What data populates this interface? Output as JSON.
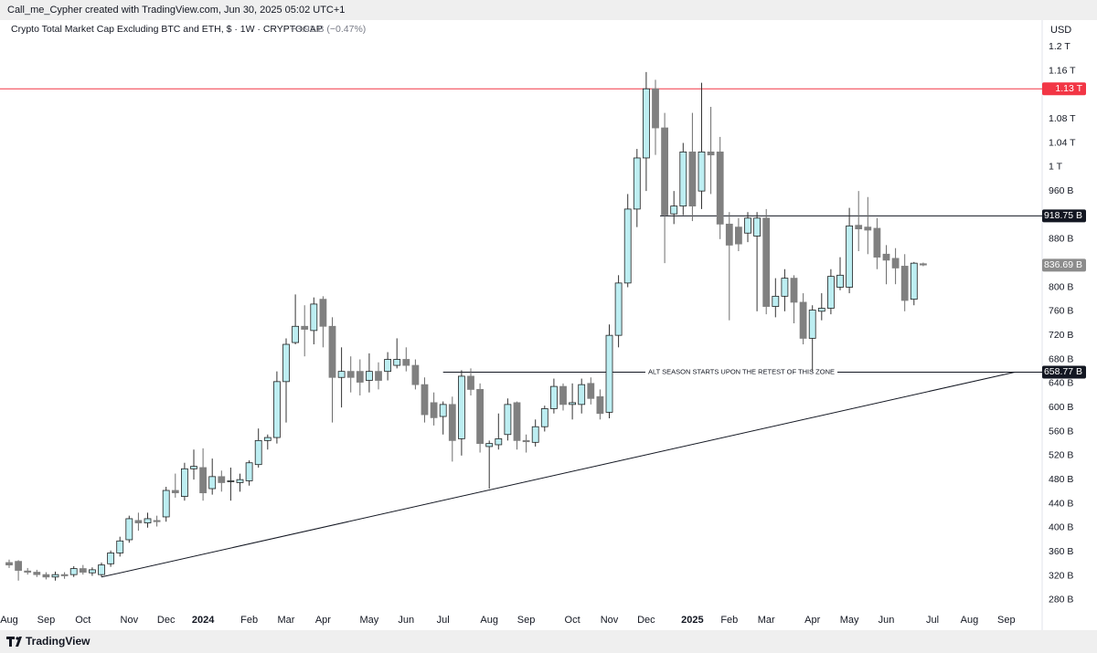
{
  "header": {
    "attribution": "Call_me_Cypher created with TradingView.com, Jun 30, 2025 05:02 UTC+1",
    "brand": "TradingView"
  },
  "chart_data": {
    "type": "candlestick",
    "title": "Crypto Total Market Cap Excluding BTC and ETH, $ · 1W · CRYPTOCAP",
    "change": "−3.92 B (−0.47%)",
    "currency": "USD",
    "up_color": "#bdeef2",
    "down_color": "#808080",
    "categories": [
      "Aug",
      null,
      null,
      null,
      "Sep",
      null,
      null,
      null,
      "Oct",
      null,
      null,
      null,
      null,
      "Nov",
      null,
      null,
      null,
      "Dec",
      null,
      null,
      null,
      "2024",
      null,
      null,
      null,
      null,
      "Feb",
      null,
      null,
      null,
      "Mar",
      null,
      null,
      null,
      "Apr",
      null,
      null,
      null,
      null,
      "May",
      null,
      null,
      null,
      "Jun",
      null,
      null,
      null,
      "Jul",
      null,
      null,
      null,
      null,
      "Aug",
      null,
      null,
      null,
      "Sep",
      null,
      null,
      null,
      null,
      "Oct",
      null,
      null,
      null,
      "Nov",
      null,
      null,
      null,
      "Dec",
      null,
      null,
      null,
      null,
      "2025",
      null,
      null,
      null,
      "Feb",
      null,
      null,
      null,
      "Mar",
      null,
      null,
      null,
      null,
      "Apr",
      null,
      null,
      null,
      "May",
      null,
      null,
      null,
      "Jun",
      null,
      null,
      null,
      null,
      "Jul",
      null,
      null,
      null,
      "Aug",
      null,
      null,
      null,
      "Sep"
    ],
    "open": [
      342,
      344,
      328,
      326,
      322,
      318,
      322,
      322,
      332,
      325,
      322,
      340,
      358,
      380,
      412,
      408,
      412,
      418,
      462,
      452,
      498,
      500,
      465,
      485,
      478,
      475,
      478,
      505,
      545,
      550,
      643,
      708,
      735,
      728,
      780,
      735,
      650,
      660,
      660,
      645,
      660,
      660,
      670,
      680,
      670,
      638,
      608,
      585,
      605,
      548,
      652,
      630,
      535,
      538,
      555,
      608,
      545,
      542,
      568,
      598,
      635,
      605,
      605,
      640,
      618,
      592,
      720,
      807,
      930,
      1015,
      1130,
      1065,
      922,
      935,
      1025,
      960,
      1025,
      1025,
      905,
      900,
      890,
      885,
      915,
      768,
      785,
      815,
      775,
      715,
      760,
      765,
      800,
      800,
      903,
      900,
      898,
      855,
      848,
      835,
      780,
      839,
      null,
      null,
      null,
      null,
      null,
      null,
      null,
      null,
      null
    ],
    "high": [
      347,
      346,
      333,
      330,
      326,
      327,
      326,
      336,
      338,
      334,
      342,
      362,
      385,
      420,
      425,
      425,
      420,
      468,
      490,
      508,
      530,
      532,
      515,
      495,
      500,
      490,
      512,
      565,
      555,
      660,
      715,
      788,
      770,
      783,
      785,
      750,
      700,
      685,
      680,
      690,
      675,
      692,
      715,
      700,
      680,
      650,
      625,
      610,
      618,
      662,
      665,
      640,
      545,
      590,
      615,
      610,
      555,
      580,
      603,
      648,
      640,
      640,
      648,
      650,
      630,
      738,
      820,
      955,
      1030,
      1158,
      1145,
      1090,
      960,
      1040,
      1090,
      1140,
      1100,
      1050,
      925,
      915,
      925,
      925,
      930,
      815,
      830,
      820,
      790,
      770,
      790,
      830,
      850,
      932,
      960,
      950,
      915,
      870,
      865,
      855,
      842,
      841,
      null,
      null,
      null,
      null,
      null,
      null,
      null,
      null,
      null
    ],
    "low": [
      333,
      312,
      322,
      318,
      314,
      312,
      315,
      318,
      322,
      320,
      318,
      335,
      352,
      375,
      395,
      400,
      402,
      410,
      450,
      445,
      480,
      445,
      455,
      460,
      445,
      460,
      470,
      500,
      530,
      540,
      575,
      705,
      685,
      705,
      700,
      575,
      600,
      625,
      620,
      625,
      630,
      645,
      665,
      660,
      630,
      575,
      570,
      555,
      510,
      520,
      620,
      525,
      465,
      530,
      545,
      530,
      525,
      535,
      560,
      590,
      595,
      580,
      590,
      605,
      580,
      582,
      700,
      800,
      900,
      960,
      1020,
      840,
      905,
      920,
      910,
      930,
      955,
      880,
      745,
      860,
      875,
      760,
      755,
      750,
      760,
      740,
      705,
      660,
      745,
      755,
      795,
      790,
      860,
      855,
      830,
      805,
      805,
      760,
      770,
      835,
      null,
      null,
      null,
      null,
      null,
      null,
      null,
      null,
      null
    ],
    "close": [
      338,
      329,
      326,
      322,
      318,
      322,
      320,
      332,
      326,
      330,
      338,
      358,
      378,
      415,
      408,
      415,
      410,
      462,
      458,
      498,
      502,
      458,
      485,
      475,
      478,
      480,
      508,
      545,
      550,
      643,
      705,
      735,
      730,
      772,
      735,
      650,
      660,
      650,
      642,
      660,
      645,
      680,
      680,
      670,
      638,
      588,
      583,
      605,
      545,
      652,
      630,
      540,
      540,
      548,
      605,
      545,
      543,
      568,
      598,
      635,
      605,
      608,
      638,
      615,
      590,
      720,
      807,
      930,
      1015,
      1130,
      1065,
      920,
      935,
      1025,
      935,
      1025,
      1020,
      905,
      870,
      872,
      915,
      915,
      768,
      785,
      815,
      775,
      715,
      762,
      765,
      818,
      820,
      902,
      897,
      895,
      850,
      845,
      832,
      778,
      840,
      837,
      null,
      null,
      null,
      null,
      null,
      null,
      null,
      null,
      null
    ],
    "ylim": [
      263,
      1220
    ],
    "yticks": [
      {
        "value": 1200,
        "label": "1.2 T"
      },
      {
        "value": 1160,
        "label": "1.16 T"
      },
      {
        "value": 1080,
        "label": "1.08 T"
      },
      {
        "value": 1040,
        "label": "1.04 T"
      },
      {
        "value": 1000,
        "label": "1 T"
      },
      {
        "value": 960,
        "label": "960 B"
      },
      {
        "value": 880,
        "label": "880 B"
      },
      {
        "value": 800,
        "label": "800 B"
      },
      {
        "value": 760,
        "label": "760 B"
      },
      {
        "value": 720,
        "label": "720 B"
      },
      {
        "value": 680,
        "label": "680 B"
      },
      {
        "value": 640,
        "label": "640 B"
      },
      {
        "value": 600,
        "label": "600 B"
      },
      {
        "value": 560,
        "label": "560 B"
      },
      {
        "value": 520,
        "label": "520 B"
      },
      {
        "value": 480,
        "label": "480 B"
      },
      {
        "value": 440,
        "label": "440 B"
      },
      {
        "value": 400,
        "label": "400 B"
      },
      {
        "value": 360,
        "label": "360 B"
      },
      {
        "value": 320,
        "label": "320 B"
      },
      {
        "value": 280,
        "label": "280 B"
      }
    ],
    "grid": false,
    "levels": [
      {
        "value": 1130,
        "label": "1.13 T",
        "color": "#f23645"
      },
      {
        "value": 918.75,
        "label": "918.75 B",
        "color": "#131722"
      },
      {
        "value": 836.69,
        "label": "836.69 B",
        "color": "#8c8c8c"
      },
      {
        "value": 658.77,
        "label": "658.77 B",
        "color": "#131722"
      }
    ],
    "annotation": "ALT SEASON STARTS UPON THE RETEST OF THIS ZONE",
    "trend_line": {
      "start": 318,
      "end": 658.77
    }
  }
}
